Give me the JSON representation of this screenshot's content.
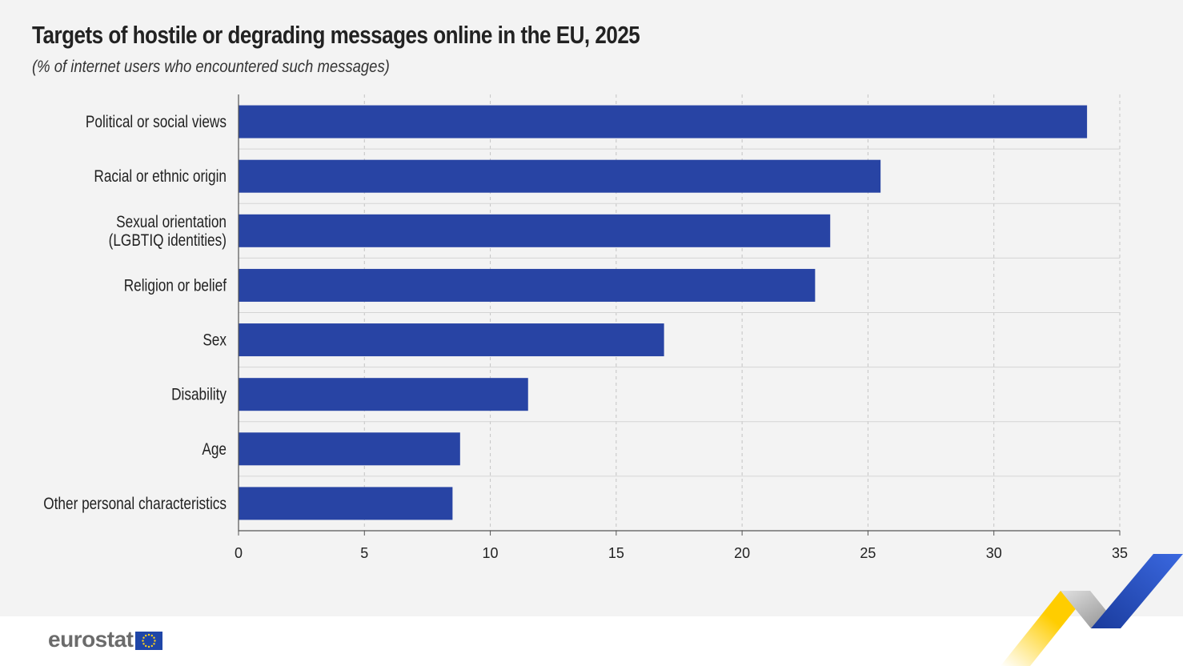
{
  "title": "Targets of hostile or degrading messages online in the EU, 2025",
  "subtitle": "(% of internet users who encountered such messages)",
  "logo": {
    "text": "eurostat"
  },
  "colors": {
    "bar": "#2844a4",
    "background": "#f3f3f3",
    "grid": "#c8c8c8",
    "axis": "#555555"
  },
  "chart_data": {
    "type": "bar",
    "orientation": "horizontal",
    "categories": [
      "Political or social views",
      "Racial or ethnic origin",
      "Sexual orientation\n(LGBTIQ identities)",
      "Religion or belief",
      "Sex",
      "Disability",
      "Age",
      "Other personal characteristics"
    ],
    "values": [
      33.7,
      25.5,
      23.5,
      22.9,
      16.9,
      11.5,
      8.8,
      8.5
    ],
    "xlim": [
      0,
      35
    ],
    "xticks": [
      0,
      5,
      10,
      15,
      20,
      25,
      30,
      35
    ],
    "xlabel": "",
    "ylabel": "",
    "grid": true,
    "legend": "none"
  }
}
